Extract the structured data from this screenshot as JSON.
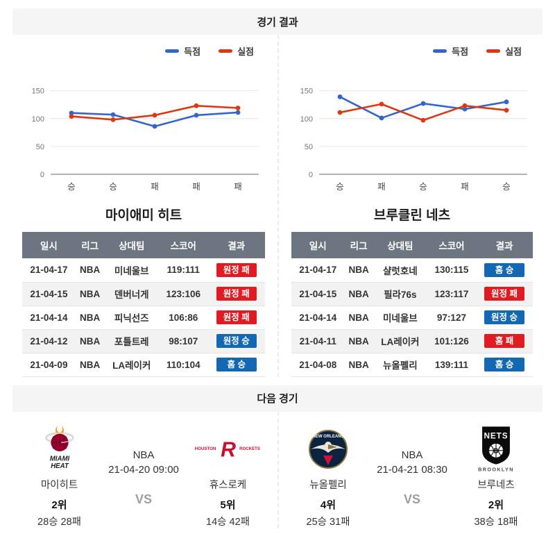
{
  "page": {
    "results_header": "경기 결과",
    "next_header": "다음 경기",
    "vs_label": "VS"
  },
  "legend": {
    "scored": "득점",
    "conceded": "실점"
  },
  "colors": {
    "scored_line": "#3366cc",
    "conceded_line": "#dc3912",
    "win_badge": "#1268b3",
    "loss_badge": "#e01b22",
    "table_header_bg": "#6d7680",
    "section_header_bg": "#f5f5f5"
  },
  "chart_data": [
    {
      "type": "line",
      "team": "마이애미 히트",
      "categories": [
        "승",
        "승",
        "패",
        "패",
        "패"
      ],
      "series": [
        {
          "name": "득점",
          "color": "#3366cc",
          "values": [
            110,
            107,
            86,
            106,
            111
          ]
        },
        {
          "name": "실점",
          "color": "#dc3912",
          "values": [
            104,
            98,
            106,
            123,
            119
          ]
        }
      ],
      "ticks": [
        0,
        50,
        100,
        150
      ],
      "ylim": [
        0,
        162
      ],
      "grid": true,
      "legend_position": "top-right"
    },
    {
      "type": "line",
      "team": "브루클린 네츠",
      "categories": [
        "승",
        "패",
        "승",
        "패",
        "승"
      ],
      "series": [
        {
          "name": "득점",
          "color": "#3366cc",
          "values": [
            139,
            101,
            127,
            117,
            130
          ]
        },
        {
          "name": "실점",
          "color": "#dc3912",
          "values": [
            111,
            126,
            97,
            123,
            115
          ]
        }
      ],
      "ticks": [
        0,
        50,
        100,
        150
      ],
      "ylim": [
        0,
        162
      ],
      "grid": true,
      "legend_position": "top-right"
    }
  ],
  "teams": [
    {
      "name": "마이애미 히트",
      "table": {
        "headers": [
          "일시",
          "리그",
          "상대팀",
          "스코어",
          "결과"
        ],
        "rows": [
          {
            "date": "21-04-17",
            "league": "NBA",
            "opponent": "미네울브",
            "score": "119:111",
            "result": "원정 패",
            "type": "loss"
          },
          {
            "date": "21-04-15",
            "league": "NBA",
            "opponent": "덴버너게",
            "score": "123:106",
            "result": "원정 패",
            "type": "loss"
          },
          {
            "date": "21-04-14",
            "league": "NBA",
            "opponent": "피닉선즈",
            "score": "106:86",
            "result": "원정 패",
            "type": "loss"
          },
          {
            "date": "21-04-12",
            "league": "NBA",
            "opponent": "포틀트레",
            "score": "98:107",
            "result": "원정 승",
            "type": "win"
          },
          {
            "date": "21-04-09",
            "league": "NBA",
            "opponent": "LA레이커",
            "score": "110:104",
            "result": "홈 승",
            "type": "win"
          }
        ]
      }
    },
    {
      "name": "브루클린 네츠",
      "table": {
        "headers": [
          "일시",
          "리그",
          "상대팀",
          "스코어",
          "결과"
        ],
        "rows": [
          {
            "date": "21-04-17",
            "league": "NBA",
            "opponent": "샬럿호네",
            "score": "130:115",
            "result": "홈 승",
            "type": "win"
          },
          {
            "date": "21-04-15",
            "league": "NBA",
            "opponent": "필라76s",
            "score": "123:117",
            "result": "원정 패",
            "type": "loss"
          },
          {
            "date": "21-04-14",
            "league": "NBA",
            "opponent": "미네울브",
            "score": "97:127",
            "result": "원정 승",
            "type": "win"
          },
          {
            "date": "21-04-11",
            "league": "NBA",
            "opponent": "LA레이커",
            "score": "101:126",
            "result": "홈 패",
            "type": "loss"
          },
          {
            "date": "21-04-08",
            "league": "NBA",
            "opponent": "뉴올펠리",
            "score": "139:111",
            "result": "홈 승",
            "type": "win"
          }
        ]
      }
    }
  ],
  "next_games": [
    {
      "league": "NBA",
      "datetime": "21-04-20 09:00",
      "home": {
        "name": "마이히트",
        "rank": "2위",
        "record": "28승 28패"
      },
      "away": {
        "name": "휴스로케",
        "rank": "5위",
        "record": "14승 42패"
      }
    },
    {
      "league": "NBA",
      "datetime": "21-04-21 08:30",
      "home": {
        "name": "뉴올펠리",
        "rank": "4위",
        "record": "25승 31패"
      },
      "away": {
        "name": "브루네츠",
        "rank": "2위",
        "record": "38승 18패"
      }
    }
  ],
  "logos": {
    "miami": {
      "line1": "MIAMI",
      "line2": "HEAT"
    },
    "rockets": {
      "left": "HOUSTON",
      "letter": "R",
      "right": "ROCKETS"
    },
    "pelicans": {
      "arc": "NEW ORLEANS"
    },
    "nets": {
      "name": "NETS",
      "letter": "B",
      "city": "BROOKLYN"
    }
  }
}
